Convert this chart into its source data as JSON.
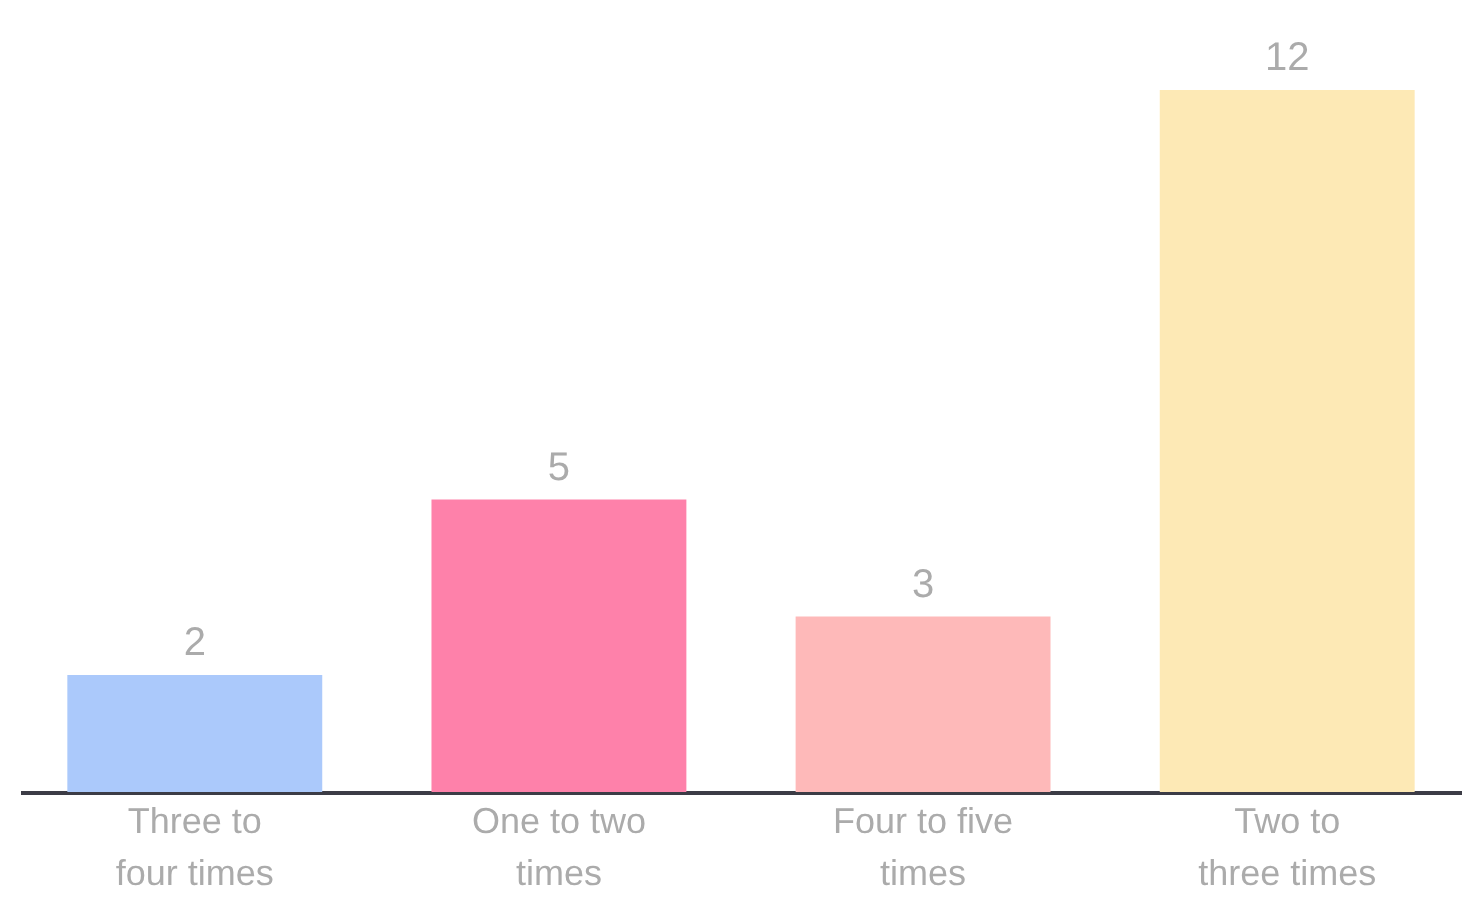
{
  "chart_data": {
    "type": "bar",
    "categories": [
      "Three to four times",
      "One to two times",
      "Four to five times",
      "Two to three times"
    ],
    "values": [
      2,
      5,
      3,
      12
    ],
    "colors": [
      "#abc9fb",
      "#fe81aa",
      "#feb9b9",
      "#fde9b5"
    ],
    "data_labels": true
  }
}
